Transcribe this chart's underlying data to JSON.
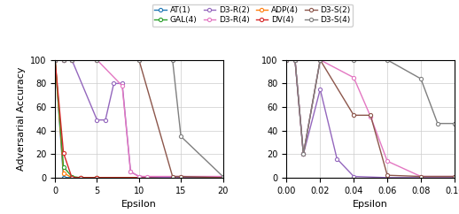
{
  "left_series": [
    {
      "label": "AT(1)",
      "color": "#1f77b4",
      "x": [
        0,
        1,
        2,
        3,
        5,
        10,
        15,
        20
      ],
      "y": [
        100,
        0,
        0,
        0,
        0,
        0,
        0,
        0
      ]
    },
    {
      "label": "ADP(4)",
      "color": "#ff7f0e",
      "x": [
        0,
        1,
        2,
        3,
        5,
        10,
        15,
        20
      ],
      "y": [
        100,
        4,
        0,
        0,
        0,
        0,
        0,
        0
      ]
    },
    {
      "label": "GAL(4)",
      "color": "#2ca02c",
      "x": [
        0,
        1,
        2,
        3,
        5,
        10,
        15,
        20
      ],
      "y": [
        100,
        9,
        1,
        0,
        0,
        0,
        0,
        0
      ]
    },
    {
      "label": "DV(4)",
      "color": "#d62728",
      "x": [
        0,
        1,
        2,
        3,
        5,
        10,
        15,
        20
      ],
      "y": [
        100,
        21,
        0,
        0,
        0,
        0,
        0,
        0
      ]
    },
    {
      "label": "D3-R(2)",
      "color": "#9467bd",
      "x": [
        0,
        1,
        2,
        5,
        6,
        7,
        8,
        9,
        10,
        15,
        20
      ],
      "y": [
        100,
        100,
        100,
        49,
        49,
        80,
        80,
        5,
        1,
        0,
        0
      ]
    },
    {
      "label": "D3-R(4)",
      "color": "#e377c2",
      "x": [
        0,
        1,
        2,
        5,
        8,
        9,
        10,
        11,
        15,
        20
      ],
      "y": [
        100,
        100,
        100,
        100,
        78,
        5,
        1,
        1,
        1,
        1
      ]
    },
    {
      "label": "D3-S(2)",
      "color": "#8c564b",
      "x": [
        0,
        1,
        2,
        5,
        10,
        14,
        15,
        20
      ],
      "y": [
        100,
        100,
        100,
        100,
        100,
        1,
        1,
        0
      ]
    },
    {
      "label": "D3-S(4)",
      "color": "#7f7f7f",
      "x": [
        0,
        1,
        2,
        5,
        10,
        14,
        15,
        20
      ],
      "y": [
        100,
        100,
        100,
        100,
        100,
        100,
        35,
        1
      ]
    }
  ],
  "right_series": [
    {
      "label": "D3-R(2)",
      "color": "#9467bd",
      "x": [
        0,
        0.005,
        0.01,
        0.02,
        0.03,
        0.04,
        0.06,
        0.08,
        0.1
      ],
      "y": [
        100,
        100,
        20,
        75,
        16,
        1,
        0,
        0,
        0
      ]
    },
    {
      "label": "D3-R(4)",
      "color": "#e377c2",
      "x": [
        0,
        0.005,
        0.01,
        0.02,
        0.04,
        0.05,
        0.06,
        0.08,
        0.1
      ],
      "y": [
        100,
        100,
        20,
        100,
        85,
        52,
        14,
        1,
        1
      ]
    },
    {
      "label": "D3-S(2)",
      "color": "#8c564b",
      "x": [
        0,
        0.005,
        0.01,
        0.02,
        0.04,
        0.05,
        0.06,
        0.08,
        0.1
      ],
      "y": [
        100,
        100,
        20,
        100,
        53,
        53,
        2,
        1,
        1
      ]
    },
    {
      "label": "D3-S(4)",
      "color": "#7f7f7f",
      "x": [
        0,
        0.005,
        0.01,
        0.02,
        0.04,
        0.06,
        0.08,
        0.09,
        0.1
      ],
      "y": [
        100,
        100,
        20,
        100,
        100,
        100,
        84,
        46,
        46
      ]
    }
  ],
  "legend_row1": [
    {
      "label": "AT(1)",
      "color": "#1f77b4"
    },
    {
      "label": "GAL(4)",
      "color": "#2ca02c"
    },
    {
      "label": "D3-R(2)",
      "color": "#9467bd"
    },
    {
      "label": "D3-R(4)",
      "color": "#e377c2"
    }
  ],
  "legend_row2": [
    {
      "label": "ADP(4)",
      "color": "#ff7f0e"
    },
    {
      "label": "DV(4)",
      "color": "#d62728"
    },
    {
      "label": "D3-S(2)",
      "color": "#8c564b"
    },
    {
      "label": "D3-S(4)",
      "color": "#7f7f7f"
    }
  ],
  "left_xlim": [
    0,
    20
  ],
  "left_ylim": [
    0,
    100
  ],
  "left_xticks": [
    0,
    5,
    10,
    15,
    20
  ],
  "left_yticks": [
    0,
    20,
    40,
    60,
    80,
    100
  ],
  "right_xlim": [
    0,
    0.1
  ],
  "right_ylim": [
    0,
    100
  ],
  "right_xticks": [
    0.0,
    0.02,
    0.04,
    0.06,
    0.08,
    0.1
  ],
  "right_yticks": [
    0,
    20,
    40,
    60,
    80,
    100
  ],
  "xlabel": "Epsilon",
  "ylabel": "Adversarial Accuracy"
}
